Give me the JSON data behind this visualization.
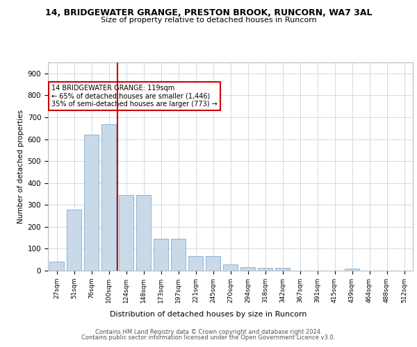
{
  "title1": "14, BRIDGEWATER GRANGE, PRESTON BROOK, RUNCORN, WA7 3AL",
  "title2": "Size of property relative to detached houses in Runcorn",
  "xlabel": "Distribution of detached houses by size in Runcorn",
  "ylabel": "Number of detached properties",
  "categories": [
    "27sqm",
    "51sqm",
    "76sqm",
    "100sqm",
    "124sqm",
    "148sqm",
    "173sqm",
    "197sqm",
    "221sqm",
    "245sqm",
    "270sqm",
    "294sqm",
    "318sqm",
    "342sqm",
    "367sqm",
    "391sqm",
    "415sqm",
    "439sqm",
    "464sqm",
    "488sqm",
    "512sqm"
  ],
  "values": [
    40,
    280,
    622,
    668,
    345,
    345,
    145,
    145,
    65,
    65,
    28,
    15,
    12,
    12,
    0,
    0,
    0,
    8,
    0,
    0,
    0
  ],
  "bar_color": "#c9d9e8",
  "bar_edge_color": "#7bafd4",
  "vline_color": "#cc0000",
  "vline_position": 4,
  "annotation_text": "14 BRIDGEWATER GRANGE: 119sqm\n← 65% of detached houses are smaller (1,446)\n35% of semi-detached houses are larger (773) →",
  "annotation_box_color": "#ffffff",
  "annotation_box_edge": "#cc0000",
  "ylim": [
    0,
    950
  ],
  "yticks": [
    0,
    100,
    200,
    300,
    400,
    500,
    600,
    700,
    800,
    900
  ],
  "footer1": "Contains HM Land Registry data © Crown copyright and database right 2024.",
  "footer2": "Contains public sector information licensed under the Open Government Licence v3.0.",
  "bg_color": "#ffffff",
  "grid_color": "#c8d4e0"
}
